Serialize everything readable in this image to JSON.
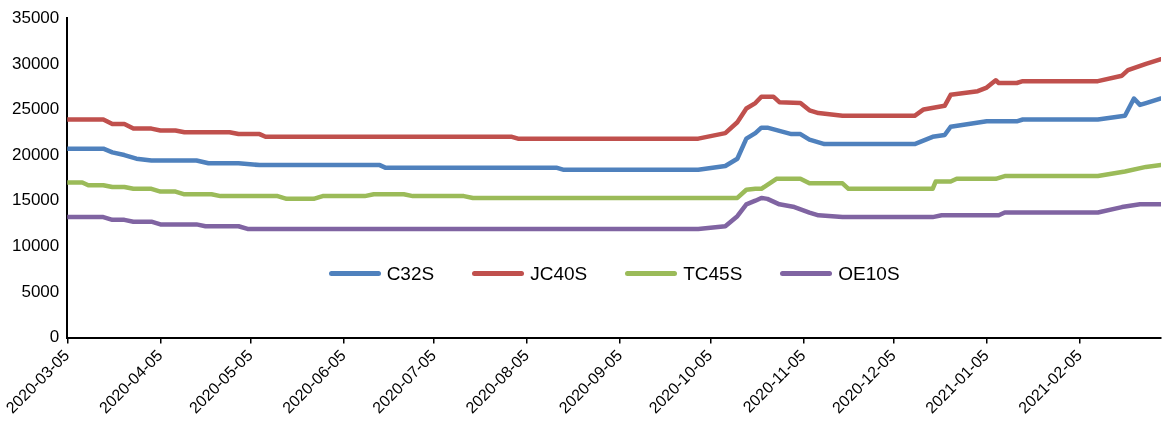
{
  "chart_data": {
    "type": "line",
    "xlim": [
      "2020-03-05",
      "2021-03-04"
    ],
    "ylim": [
      0,
      35000
    ],
    "yticks": [
      0,
      5000,
      10000,
      15000,
      20000,
      25000,
      30000,
      35000
    ],
    "xticks": [
      "2020-03-05",
      "2020-04-05",
      "2020-05-05",
      "2020-06-05",
      "2020-07-05",
      "2020-08-05",
      "2020-09-05",
      "2020-10-05",
      "2020-11-05",
      "2020-12-05",
      "2021-01-05",
      "2021-02-05"
    ],
    "legend": "bottom",
    "marker": "none",
    "line_style": "solid",
    "series": [
      {
        "name": "C32S",
        "color": "#4f81bd",
        "x": [
          "2020-03-05",
          "2020-03-17",
          "2020-03-20",
          "2020-03-24",
          "2020-03-28",
          "2020-04-02",
          "2020-04-17",
          "2020-04-21",
          "2020-05-01",
          "2020-05-08",
          "2020-06-17",
          "2020-06-19",
          "2020-08-15",
          "2020-08-17",
          "2020-10-01",
          "2020-10-10",
          "2020-10-14",
          "2020-10-17",
          "2020-10-20",
          "2020-10-22",
          "2020-10-24",
          "2020-11-01",
          "2020-11-04",
          "2020-11-07",
          "2020-11-12",
          "2020-12-12",
          "2020-12-18",
          "2020-12-22",
          "2020-12-24",
          "2021-01-05",
          "2021-01-15",
          "2021-01-17",
          "2021-02-11",
          "2021-02-20",
          "2021-02-23",
          "2021-02-25",
          "2021-02-27",
          "2021-03-04"
        ],
        "values": [
          20700,
          20700,
          20300,
          20000,
          19600,
          19400,
          19400,
          19100,
          19100,
          18900,
          18900,
          18600,
          18600,
          18400,
          18400,
          18800,
          19600,
          21800,
          22400,
          23000,
          23000,
          22300,
          22300,
          21700,
          21200,
          21200,
          22000,
          22200,
          23100,
          23700,
          23700,
          23900,
          23900,
          24300,
          26200,
          25500,
          25700,
          26200
        ]
      },
      {
        "name": "JC40S",
        "color": "#c0504d",
        "x": [
          "2020-03-05",
          "2020-03-17",
          "2020-03-20",
          "2020-03-24",
          "2020-03-27",
          "2020-04-02",
          "2020-04-05",
          "2020-04-10",
          "2020-04-13",
          "2020-04-28",
          "2020-05-01",
          "2020-05-08",
          "2020-05-10",
          "2020-07-31",
          "2020-08-02",
          "2020-10-01",
          "2020-10-10",
          "2020-10-14",
          "2020-10-17",
          "2020-10-20",
          "2020-10-22",
          "2020-10-26",
          "2020-10-28",
          "2020-11-04",
          "2020-11-07",
          "2020-11-10",
          "2020-11-18",
          "2020-12-12",
          "2020-12-15",
          "2020-12-22",
          "2020-12-24",
          "2021-01-02",
          "2021-01-05",
          "2021-01-08",
          "2021-01-09",
          "2021-01-15",
          "2021-01-17",
          "2021-02-11",
          "2021-02-19",
          "2021-02-21",
          "2021-02-27",
          "2021-03-04"
        ],
        "values": [
          23900,
          23900,
          23400,
          23400,
          22900,
          22900,
          22700,
          22700,
          22500,
          22500,
          22300,
          22300,
          22000,
          22000,
          21800,
          21800,
          22400,
          23600,
          25100,
          25700,
          26400,
          26400,
          25800,
          25700,
          24900,
          24600,
          24300,
          24300,
          25000,
          25400,
          26600,
          27000,
          27400,
          28200,
          27900,
          27900,
          28100,
          28100,
          28700,
          29300,
          30000,
          30500
        ]
      },
      {
        "name": "TC45S",
        "color": "#9bbb59",
        "x": [
          "2020-03-05",
          "2020-03-10",
          "2020-03-12",
          "2020-03-17",
          "2020-03-20",
          "2020-03-24",
          "2020-03-27",
          "2020-04-02",
          "2020-04-05",
          "2020-04-10",
          "2020-04-13",
          "2020-04-22",
          "2020-04-25",
          "2020-05-14",
          "2020-05-17",
          "2020-05-26",
          "2020-05-29",
          "2020-06-12",
          "2020-06-15",
          "2020-06-25",
          "2020-06-28",
          "2020-07-15",
          "2020-07-18",
          "2020-10-14",
          "2020-10-17",
          "2020-10-20",
          "2020-10-22",
          "2020-10-27",
          "2020-11-04",
          "2020-11-07",
          "2020-11-18",
          "2020-11-20",
          "2020-12-18",
          "2020-12-19",
          "2020-12-24",
          "2020-12-26",
          "2021-01-08",
          "2021-01-11",
          "2021-02-11",
          "2021-02-20",
          "2021-02-27",
          "2021-03-04"
        ],
        "values": [
          17000,
          17000,
          16700,
          16700,
          16500,
          16500,
          16300,
          16300,
          16000,
          16000,
          15700,
          15700,
          15500,
          15500,
          15200,
          15200,
          15500,
          15500,
          15700,
          15700,
          15500,
          15500,
          15300,
          15300,
          16200,
          16300,
          16300,
          17400,
          17400,
          16900,
          16900,
          16300,
          16300,
          17100,
          17100,
          17400,
          17400,
          17700,
          17700,
          18200,
          18700,
          18900
        ]
      },
      {
        "name": "OE10S",
        "color": "#8064a2",
        "x": [
          "2020-03-05",
          "2020-03-17",
          "2020-03-20",
          "2020-03-24",
          "2020-03-27",
          "2020-04-02",
          "2020-04-05",
          "2020-04-17",
          "2020-04-20",
          "2020-05-01",
          "2020-05-04",
          "2020-10-01",
          "2020-10-10",
          "2020-10-14",
          "2020-10-17",
          "2020-10-20",
          "2020-10-22",
          "2020-10-24",
          "2020-10-28",
          "2020-11-02",
          "2020-11-07",
          "2020-11-10",
          "2020-11-18",
          "2020-12-18",
          "2020-12-21",
          "2021-01-09",
          "2021-01-11",
          "2021-02-11",
          "2021-02-19",
          "2021-02-25",
          "2021-03-04"
        ],
        "values": [
          13200,
          13200,
          12900,
          12900,
          12700,
          12700,
          12400,
          12400,
          12200,
          12200,
          11900,
          11900,
          12200,
          13300,
          14600,
          15000,
          15300,
          15200,
          14600,
          14300,
          13700,
          13400,
          13200,
          13200,
          13400,
          13400,
          13700,
          13700,
          14300,
          14600,
          14600
        ]
      }
    ]
  }
}
